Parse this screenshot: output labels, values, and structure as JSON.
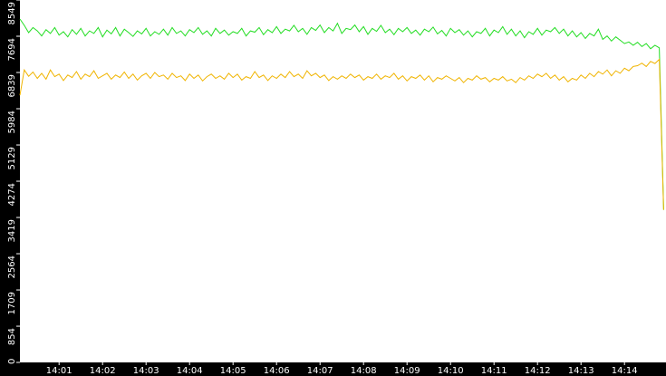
{
  "chart_data": {
    "type": "line",
    "categories": [
      null,
      null,
      null,
      null,
      null,
      null,
      null,
      null,
      null,
      "14:01",
      null,
      null,
      null,
      null,
      null,
      null,
      null,
      null,
      null,
      "14:02",
      null,
      null,
      null,
      null,
      null,
      null,
      null,
      null,
      null,
      "14:03",
      null,
      null,
      null,
      null,
      null,
      null,
      null,
      null,
      null,
      "14:04",
      null,
      null,
      null,
      null,
      null,
      null,
      null,
      null,
      null,
      "14:05",
      null,
      null,
      null,
      null,
      null,
      null,
      null,
      null,
      null,
      "14:06",
      null,
      null,
      null,
      null,
      null,
      null,
      null,
      null,
      null,
      "14:07",
      null,
      null,
      null,
      null,
      null,
      null,
      null,
      null,
      null,
      "14:08",
      null,
      null,
      null,
      null,
      null,
      null,
      null,
      null,
      null,
      "14:09",
      null,
      null,
      null,
      null,
      null,
      null,
      null,
      null,
      null,
      "14:10",
      null,
      null,
      null,
      null,
      null,
      null,
      null,
      null,
      null,
      "14:11",
      null,
      null,
      null,
      null,
      null,
      null,
      null,
      null,
      null,
      "14:12",
      null,
      null,
      null,
      null,
      null,
      null,
      null,
      null,
      null,
      "14:13",
      null,
      null,
      null,
      null,
      null,
      null,
      null,
      null,
      null,
      "14:14",
      null,
      null,
      null,
      null,
      null,
      null,
      null,
      null,
      null
    ],
    "series": [
      {
        "color": "#22dd22",
        "values": [
          8100,
          7950,
          7780,
          7900,
          7820,
          7700,
          7850,
          7760,
          7900,
          7720,
          7800,
          7680,
          7850,
          7740,
          7880,
          7700,
          7820,
          7760,
          7900,
          7680,
          7840,
          7750,
          7900,
          7700,
          7860,
          7780,
          7690,
          7820,
          7750,
          7880,
          7700,
          7800,
          7740,
          7860,
          7720,
          7900,
          7760,
          7820,
          7700,
          7850,
          7780,
          7900,
          7740,
          7820,
          7700,
          7880,
          7760,
          7840,
          7720,
          7800,
          7760,
          7880,
          7700,
          7820,
          7790,
          7900,
          7730,
          7850,
          7780,
          7920,
          7760,
          7860,
          7820,
          7950,
          7800,
          7880,
          7740,
          7900,
          7830,
          7960,
          7780,
          7900,
          7820,
          8000,
          7760,
          7880,
          7850,
          7960,
          7800,
          7920,
          7740,
          7880,
          7810,
          7950,
          7780,
          7860,
          7730,
          7880,
          7800,
          7900,
          7760,
          7840,
          7720,
          7860,
          7800,
          7910,
          7750,
          7830,
          7700,
          7880,
          7780,
          7850,
          7720,
          7820,
          7680,
          7800,
          7760,
          7880,
          7700,
          7840,
          7780,
          7920,
          7740,
          7860,
          7700,
          7820,
          7660,
          7800,
          7740,
          7880,
          7720,
          7840,
          7800,
          7900,
          7760,
          7860,
          7700,
          7820,
          7680,
          7780,
          7640,
          7760,
          7700,
          7860,
          7620,
          7700,
          7580,
          7680,
          7600,
          7520,
          7560,
          7480,
          7550,
          7450,
          7520,
          7400,
          7480,
          7420,
          3600
        ]
      },
      {
        "color": "#f0b400",
        "values": [
          6300,
          6900,
          6750,
          6850,
          6700,
          6820,
          6680,
          6900,
          6740,
          6800,
          6650,
          6780,
          6720,
          6860,
          6680,
          6800,
          6740,
          6880,
          6700,
          6760,
          6820,
          6680,
          6780,
          6720,
          6850,
          6700,
          6800,
          6660,
          6760,
          6820,
          6700,
          6840,
          6740,
          6780,
          6680,
          6820,
          6720,
          6760,
          6650,
          6800,
          6700,
          6780,
          6640,
          6740,
          6800,
          6700,
          6760,
          6680,
          6820,
          6720,
          6800,
          6660,
          6740,
          6700,
          6860,
          6720,
          6780,
          6650,
          6760,
          6700,
          6800,
          6720,
          6860,
          6740,
          6800,
          6700,
          6880,
          6760,
          6820,
          6720,
          6780,
          6650,
          6740,
          6680,
          6760,
          6700,
          6800,
          6720,
          6780,
          6660,
          6740,
          6700,
          6800,
          6680,
          6760,
          6720,
          6820,
          6680,
          6760,
          6640,
          6740,
          6700,
          6780,
          6660,
          6760,
          6620,
          6720,
          6680,
          6760,
          6700,
          6640,
          6720,
          6600,
          6700,
          6660,
          6760,
          6680,
          6720,
          6620,
          6700,
          6660,
          6740,
          6640,
          6680,
          6600,
          6720,
          6660,
          6760,
          6700,
          6800,
          6740,
          6820,
          6700,
          6780,
          6660,
          6740,
          6620,
          6700,
          6660,
          6780,
          6700,
          6820,
          6740,
          6860,
          6800,
          6900,
          6760,
          6880,
          6820,
          6940,
          6880,
          6980,
          7000,
          7060,
          6980,
          7100,
          7050,
          7150,
          3600
        ]
      }
    ],
    "ylim": [
      0,
      8549
    ],
    "yticks": [
      0,
      854,
      1709,
      2564,
      3419,
      4274,
      5129,
      5984,
      6839,
      7694,
      8549
    ],
    "grid": false
  }
}
